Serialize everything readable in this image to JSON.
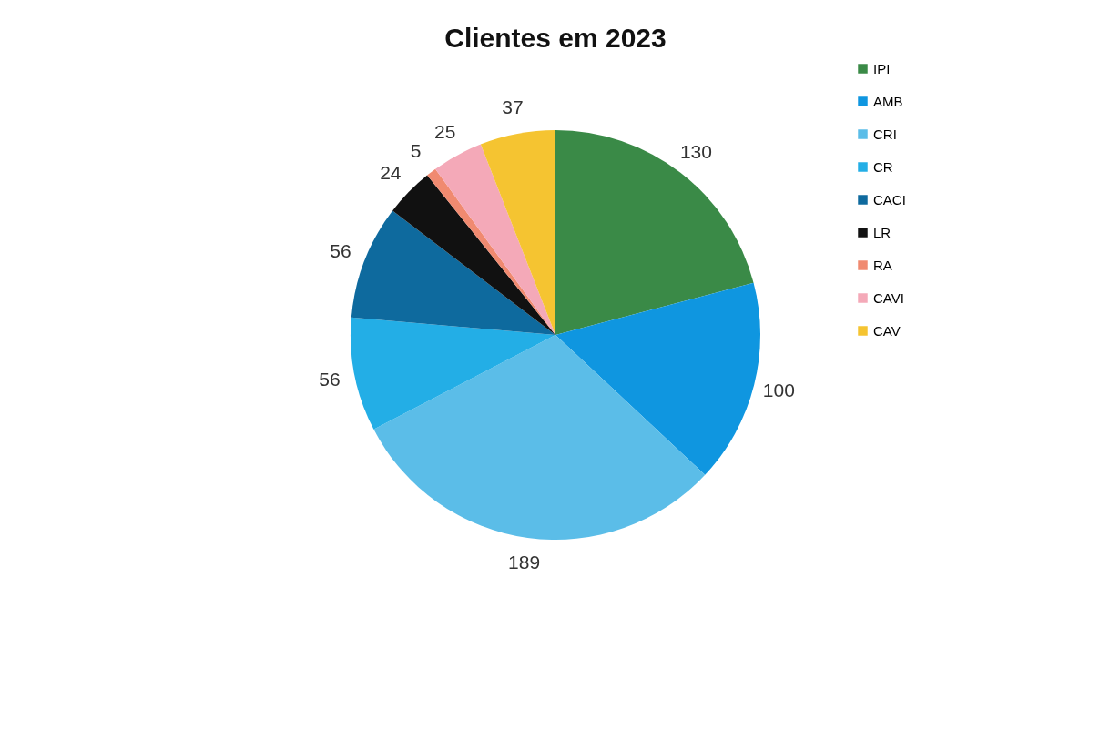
{
  "chart_data": {
    "type": "pie",
    "title": "Clientes em 2023",
    "categories": [
      "IPI",
      "AMB",
      "CRI",
      "CR",
      "CACI",
      "LR",
      "RA",
      "CAVI",
      "CAV"
    ],
    "values": [
      130,
      100,
      189,
      56,
      56,
      24,
      5,
      25,
      37
    ],
    "colors": [
      "#3a8a47",
      "#0f96e0",
      "#5bbde8",
      "#23aee6",
      "#0e6a9e",
      "#111111",
      "#f08a70",
      "#f4a9b8",
      "#f5c431"
    ],
    "data_labels": true,
    "legend": "right"
  }
}
